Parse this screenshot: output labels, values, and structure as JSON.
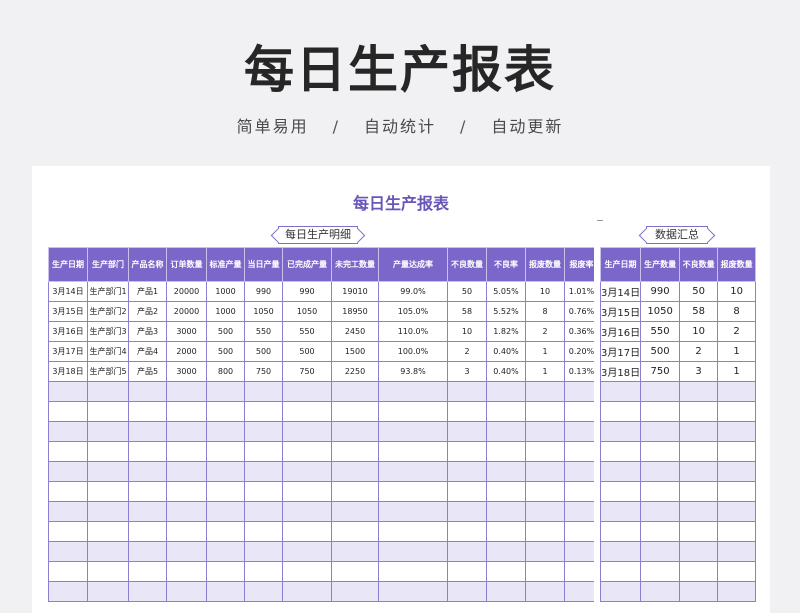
{
  "hero": {
    "title": "每日生产报表",
    "features": [
      "简单易用",
      "自动统计",
      "自动更新"
    ],
    "separator": "/"
  },
  "sheet": {
    "title": "每日生产报表",
    "detail_tag": "每日生产明细",
    "summary_tag": "数据汇总"
  },
  "detail": {
    "headers": [
      "生产日期",
      "生产部门",
      "产品名称",
      "订单数量",
      "标准产量",
      "当日产量",
      "已完成产量",
      "未完工数量",
      "产量达成率",
      "不良数量",
      "不良率",
      "报废数量",
      "报废率"
    ],
    "rows": [
      [
        "3月14日",
        "生产部门1",
        "产品1",
        "20000",
        "1000",
        "990",
        "990",
        "19010",
        "99.0%",
        "50",
        "5.05%",
        "10",
        "1.01%"
      ],
      [
        "3月15日",
        "生产部门2",
        "产品2",
        "20000",
        "1000",
        "1050",
        "1050",
        "18950",
        "105.0%",
        "58",
        "5.52%",
        "8",
        "0.76%"
      ],
      [
        "3月16日",
        "生产部门3",
        "产品3",
        "3000",
        "500",
        "550",
        "550",
        "2450",
        "110.0%",
        "10",
        "1.82%",
        "2",
        "0.36%"
      ],
      [
        "3月17日",
        "生产部门4",
        "产品4",
        "2000",
        "500",
        "500",
        "500",
        "1500",
        "100.0%",
        "2",
        "0.40%",
        "1",
        "0.20%"
      ],
      [
        "3月18日",
        "生产部门5",
        "产品5",
        "3000",
        "800",
        "750",
        "750",
        "2250",
        "93.8%",
        "3",
        "0.40%",
        "1",
        "0.13%"
      ]
    ],
    "blank_rows": 11
  },
  "summary": {
    "headers": [
      "生产日期",
      "生产数量",
      "不良数量",
      "报废数量"
    ],
    "rows": [
      [
        "3月14日",
        "990",
        "50",
        "10"
      ],
      [
        "3月15日",
        "1050",
        "58",
        "8"
      ],
      [
        "3月16日",
        "550",
        "10",
        "2"
      ],
      [
        "3月17日",
        "500",
        "2",
        "1"
      ],
      [
        "3月18日",
        "750",
        "3",
        "1"
      ]
    ],
    "blank_rows": 11
  },
  "colors": {
    "header_bg": "#7b66c9",
    "title": "#6a56b8",
    "alt_row": "#e9e6f8",
    "grid": "#8c7fd0"
  }
}
